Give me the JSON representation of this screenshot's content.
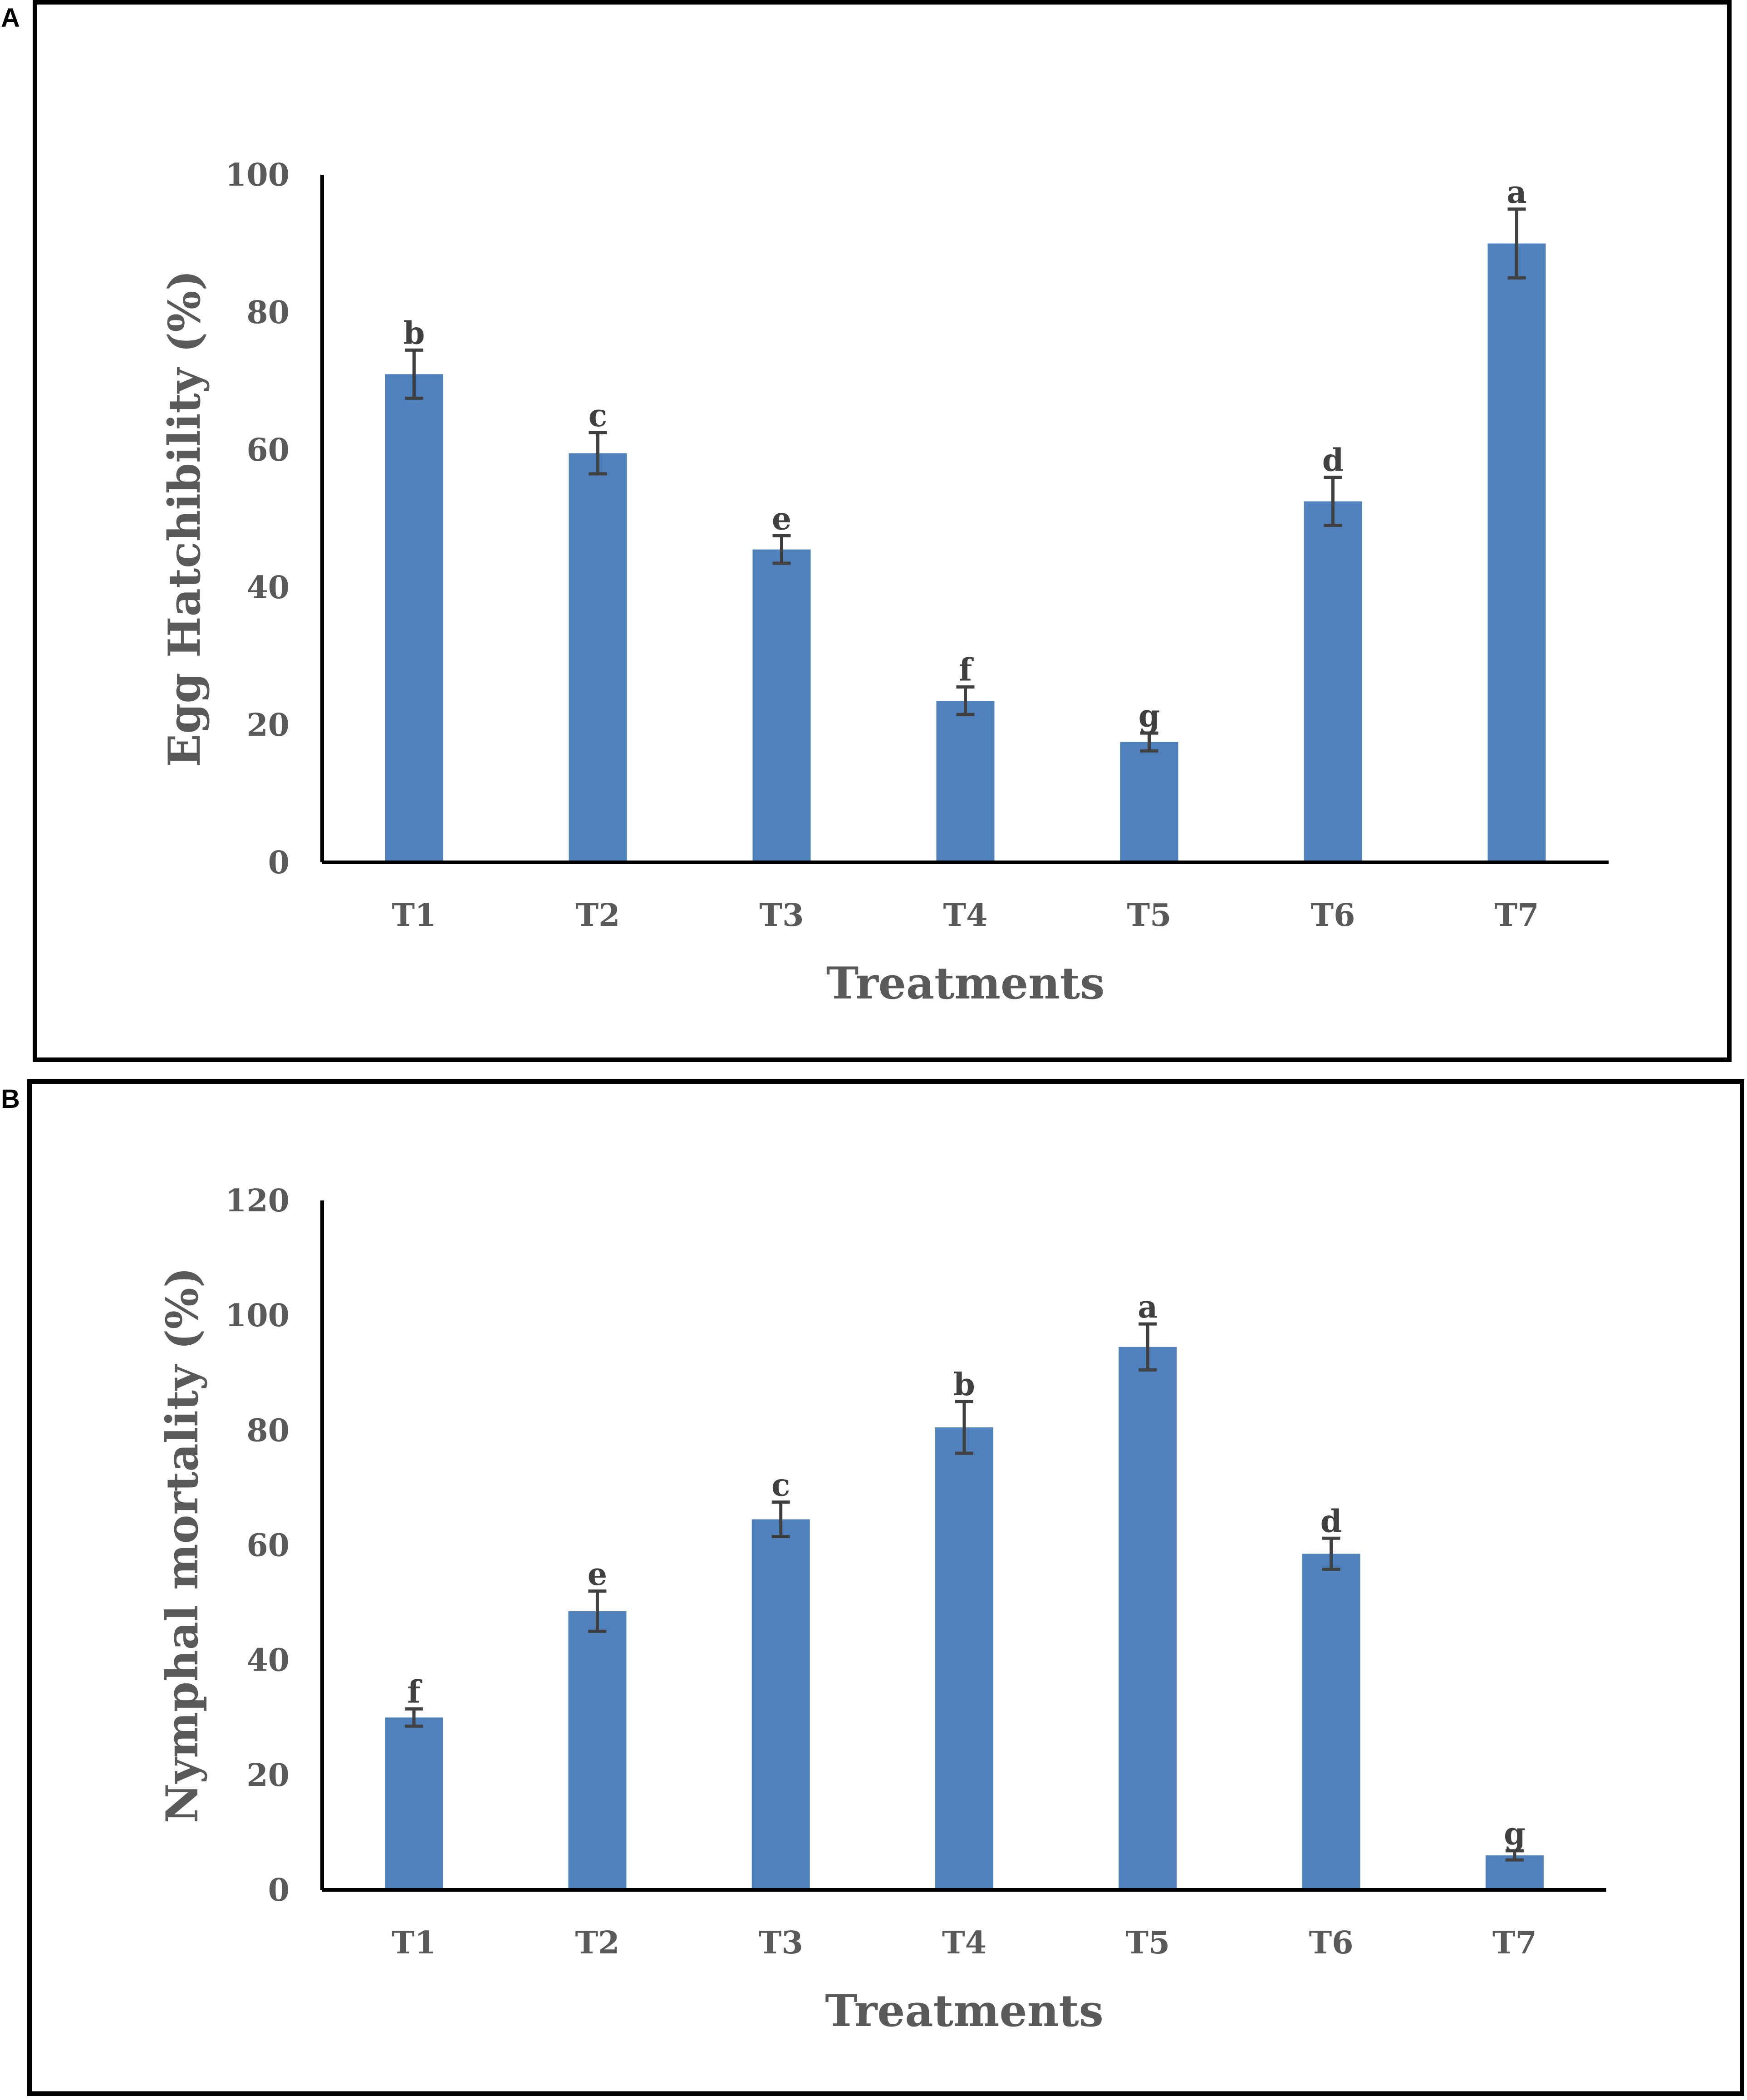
{
  "chart_data": [
    {
      "panel_label": "A",
      "type": "bar",
      "xlabel": "Treatments",
      "ylabel": "Egg Hatchibility (%)",
      "ylim": [
        0,
        100
      ],
      "yticks": [
        0,
        20,
        40,
        60,
        80,
        100
      ],
      "categories": [
        "T1",
        "T2",
        "T3",
        "T4",
        "T5",
        "T6",
        "T7"
      ],
      "values": [
        71,
        59.5,
        45.5,
        23.5,
        17.5,
        52.5,
        90
      ],
      "errors": [
        3.5,
        3,
        2,
        2,
        1.3,
        3.5,
        5
      ],
      "letters": [
        "b",
        "c",
        "e",
        "f",
        "g",
        "d",
        "a"
      ],
      "bar_color": "#4F81BD"
    },
    {
      "panel_label": "B",
      "type": "bar",
      "xlabel": "Treatments",
      "ylabel": "Nymphal mortality (%)",
      "ylim": [
        0,
        120
      ],
      "yticks": [
        0,
        20,
        40,
        60,
        80,
        100,
        120
      ],
      "categories": [
        "T1",
        "T2",
        "T3",
        "T4",
        "T5",
        "T6",
        "T7"
      ],
      "values": [
        30,
        48.5,
        64.5,
        80.5,
        94.5,
        58.5,
        6
      ],
      "errors": [
        1.5,
        3.5,
        3,
        4.5,
        4,
        2.7,
        0.8
      ],
      "letters": [
        "f",
        "e",
        "c",
        "b",
        "a",
        "d",
        "g"
      ],
      "bar_color": "#4F81BD"
    }
  ]
}
